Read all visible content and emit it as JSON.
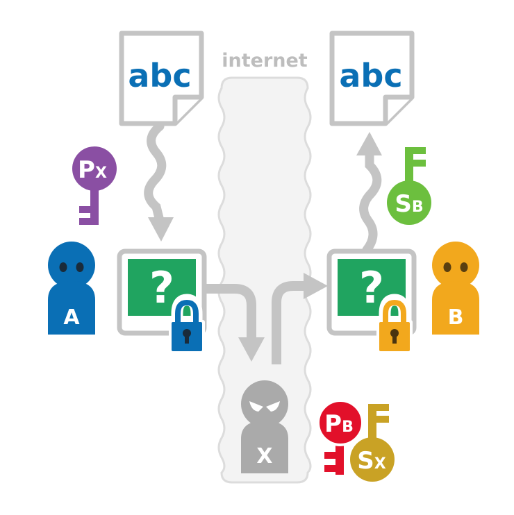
{
  "internet_label": "internet",
  "documents": {
    "sender_text": "abc",
    "receiver_text": "abc",
    "encrypted_glyph": "?"
  },
  "people": {
    "alice": {
      "label": "A"
    },
    "bob": {
      "label": "B"
    },
    "attacker": {
      "label": "X"
    }
  },
  "keys": {
    "px": {
      "letter": "P",
      "sub": "X"
    },
    "sb": {
      "letter": "S",
      "sub": "B"
    },
    "pb": {
      "letter": "P",
      "sub": "B"
    },
    "sx": {
      "letter": "S",
      "sub": "X"
    }
  },
  "colors": {
    "gray": "#c4c4c4",
    "doc_blue": "#0a6fb5",
    "green": "#20a460",
    "alice_blue": "#0a6fb5",
    "bob_orange": "#f2a81d",
    "purple": "#8a4fa3",
    "lime": "#6cbf3e",
    "red": "#e2102a",
    "gold": "#c9a225"
  },
  "icons": [
    "document-icon",
    "person-icon",
    "padlock-icon",
    "key-icon",
    "arrow-icon"
  ]
}
